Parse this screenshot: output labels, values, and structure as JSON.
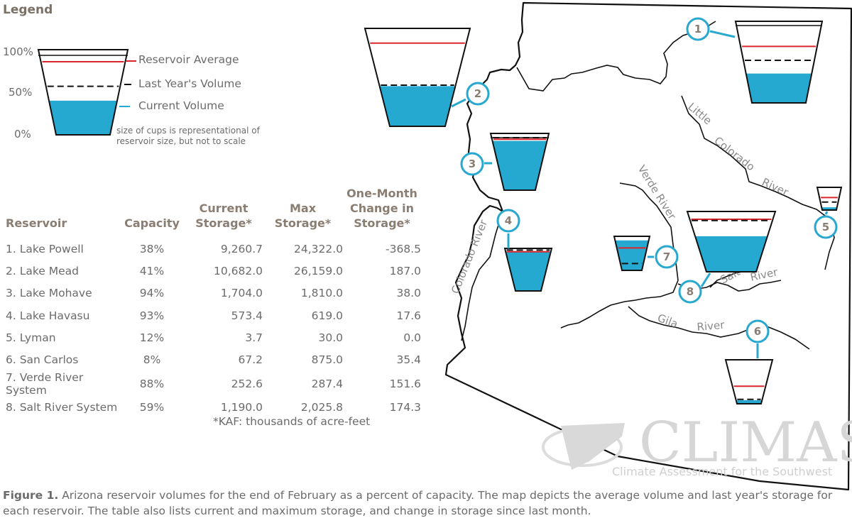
{
  "legend": {
    "title": "Legend",
    "pct_labels": [
      "100%",
      "50%",
      "0%"
    ],
    "reservoir_average": "Reservoir Average",
    "last_year_volume": "Last Year's Volume",
    "current_volume": "Current Volume",
    "note_line1": "size of cups is representational of",
    "note_line2": "reservoir size, but not to scale",
    "example_fill_fraction": 0.43,
    "example_avg_fraction": 0.92,
    "example_last_year_fraction": 0.61
  },
  "table": {
    "headers": {
      "reservoir": "Reservoir",
      "capacity": "Capacity",
      "current_storage": [
        "Current",
        "Storage*"
      ],
      "max_storage": [
        "Max",
        "Storage*"
      ],
      "change": [
        "One-Month",
        "Change in",
        "Storage*"
      ]
    },
    "rows": [
      {
        "name": "1. Lake Powell",
        "capacity": "38%",
        "current": "9,260.7",
        "max": "24,322.0",
        "change": "-368.5"
      },
      {
        "name": "2. Lake Mead",
        "capacity": "41%",
        "current": "10,682.0",
        "max": "26,159.0",
        "change": "187.0"
      },
      {
        "name": "3. Lake Mohave",
        "capacity": "94%",
        "current": "1,704.0",
        "max": "1,810.0",
        "change": "38.0"
      },
      {
        "name": "4. Lake Havasu",
        "capacity": "93%",
        "current": "573.4",
        "max": "619.0",
        "change": "17.6"
      },
      {
        "name": "5. Lyman",
        "capacity": "12%",
        "current": "3.7",
        "max": "30.0",
        "change": "0.0"
      },
      {
        "name": "6. San Carlos",
        "capacity": "8%",
        "current": "67.2",
        "max": "875.0",
        "change": "35.4"
      },
      {
        "name": "7. Verde River System",
        "capacity": "88%",
        "current": "252.6",
        "max": "287.4",
        "change": "151.6"
      },
      {
        "name": "8. Salt River System",
        "capacity": "59%",
        "current": "1,190.0",
        "max": "2,025.8",
        "change": "174.3"
      }
    ],
    "footnote": "*KAF: thousands of acre-feet"
  },
  "rivers": {
    "little": "Little",
    "colorado": "Colorado",
    "river": "River",
    "verde_river": "Verde River",
    "salt": "Salt",
    "gila": "Gila",
    "colorado_river": "Colorado River"
  },
  "cups": [
    {
      "id": "1",
      "fill": 0.38,
      "average": 0.73,
      "last_year": 0.55
    },
    {
      "id": "2",
      "fill": 0.41,
      "average": 0.85,
      "last_year": 0.42
    },
    {
      "id": "3",
      "fill": 0.94,
      "average": 0.97,
      "last_year": 1.0
    },
    {
      "id": "4",
      "fill": 0.93,
      "average": 0.92,
      "last_year": 0.96
    },
    {
      "id": "5",
      "fill": 0.12,
      "average": 0.55,
      "last_year": 0.35
    },
    {
      "id": "6",
      "fill": 0.08,
      "average": 0.4,
      "last_year": 0.1
    },
    {
      "id": "7",
      "fill": 0.88,
      "average": 0.66,
      "last_year": 0.2
    },
    {
      "id": "8",
      "fill": 0.59,
      "average": 0.87,
      "last_year": 0.85
    }
  ],
  "colors": {
    "water": "#25a9d1",
    "average_line": "#d9262c",
    "badge": "#29a8cf",
    "border": "#111111",
    "header_text": "#8a7d72",
    "watermark": "#d6d6d6"
  },
  "logo": {
    "name": "CLIMAS",
    "subtitle": "Climate Assessment for the Southwest"
  },
  "caption": {
    "figure": "Figure 1.",
    "text": "Arizona reservoir volumes for the end of February as a percent of capacity. The map depicts the average volume and last year's storage for each reservoir. The table also lists current and maximum storage, and change in storage since last month."
  }
}
